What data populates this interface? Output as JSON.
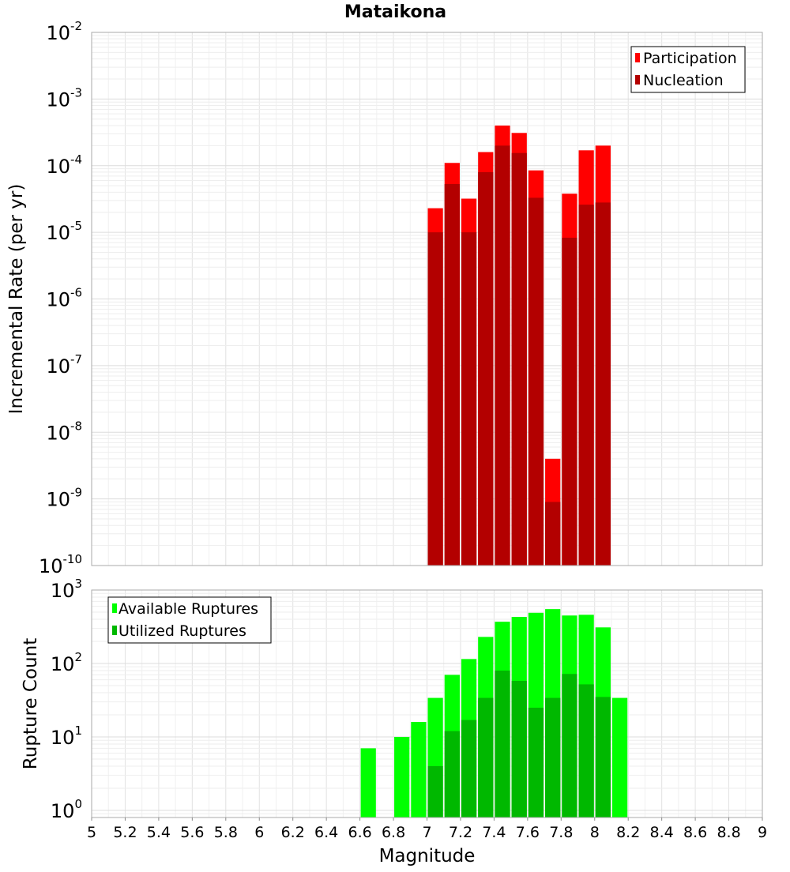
{
  "chart_data": [
    {
      "type": "bar",
      "title": "Mataikona",
      "xlabel": "Magnitude",
      "ylabel": "Incremental Rate (per yr)",
      "xlim": [
        5,
        9
      ],
      "ylim": [
        1e-10,
        0.01
      ],
      "yscale": "log",
      "grid": true,
      "legend_position": "top-right",
      "bin_width": 0.1,
      "x": [
        7.05,
        7.15,
        7.25,
        7.35,
        7.45,
        7.55,
        7.65,
        7.75,
        7.85,
        7.95,
        8.05
      ],
      "series": [
        {
          "name": "Participation",
          "color": "#ff0000",
          "values": [
            2.3e-05,
            0.00011,
            3.2e-05,
            0.00016,
            0.0004,
            0.00031,
            8.5e-05,
            4e-09,
            3.8e-05,
            0.00017,
            0.0002
          ]
        },
        {
          "name": "Nucleation",
          "color": "#b30000",
          "values": [
            1e-05,
            5.3e-05,
            1e-05,
            8e-05,
            0.0002,
            0.000155,
            3.3e-05,
            9e-10,
            8.3e-06,
            2.6e-05,
            2.8e-05
          ]
        }
      ],
      "y_tick_labels": [
        {
          "base": "10",
          "exp": "-10"
        },
        {
          "base": "10",
          "exp": "-9"
        },
        {
          "base": "10",
          "exp": "-8"
        },
        {
          "base": "10",
          "exp": "-7"
        },
        {
          "base": "10",
          "exp": "-6"
        },
        {
          "base": "10",
          "exp": "-5"
        },
        {
          "base": "10",
          "exp": "-4"
        },
        {
          "base": "10",
          "exp": "-3"
        },
        {
          "base": "10",
          "exp": "-2"
        }
      ]
    },
    {
      "type": "bar",
      "xlabel": "Magnitude",
      "ylabel": "Rupture Count",
      "xlim": [
        5,
        9
      ],
      "ylim": [
        0.8,
        1000
      ],
      "yscale": "log",
      "grid": true,
      "legend_position": "top-left",
      "bin_width": 0.1,
      "x": [
        6.65,
        6.85,
        6.95,
        7.05,
        7.15,
        7.25,
        7.35,
        7.45,
        7.55,
        7.65,
        7.75,
        7.85,
        7.95,
        8.05,
        8.15
      ],
      "series": [
        {
          "name": "Available Ruptures",
          "color": "#00ff00",
          "values": [
            7,
            10,
            16,
            34,
            70,
            115,
            230,
            370,
            430,
            490,
            550,
            450,
            460,
            310,
            34
          ]
        },
        {
          "name": "Utilized Ruptures",
          "color": "#00b800",
          "values": [
            0,
            0,
            0,
            4,
            12,
            17,
            34,
            80,
            58,
            25,
            34,
            72,
            52,
            35,
            0
          ]
        }
      ],
      "x_tick_labels": [
        "5",
        "5.2",
        "5.4",
        "5.6",
        "5.8",
        "6",
        "6.2",
        "6.4",
        "6.6",
        "6.8",
        "7",
        "7.2",
        "7.4",
        "7.6",
        "7.8",
        "8",
        "8.2",
        "8.4",
        "8.6",
        "8.8",
        "9"
      ],
      "y_tick_labels": [
        {
          "base": "10",
          "exp": "0"
        },
        {
          "base": "10",
          "exp": "1"
        },
        {
          "base": "10",
          "exp": "2"
        },
        {
          "base": "10",
          "exp": "3"
        }
      ]
    }
  ]
}
